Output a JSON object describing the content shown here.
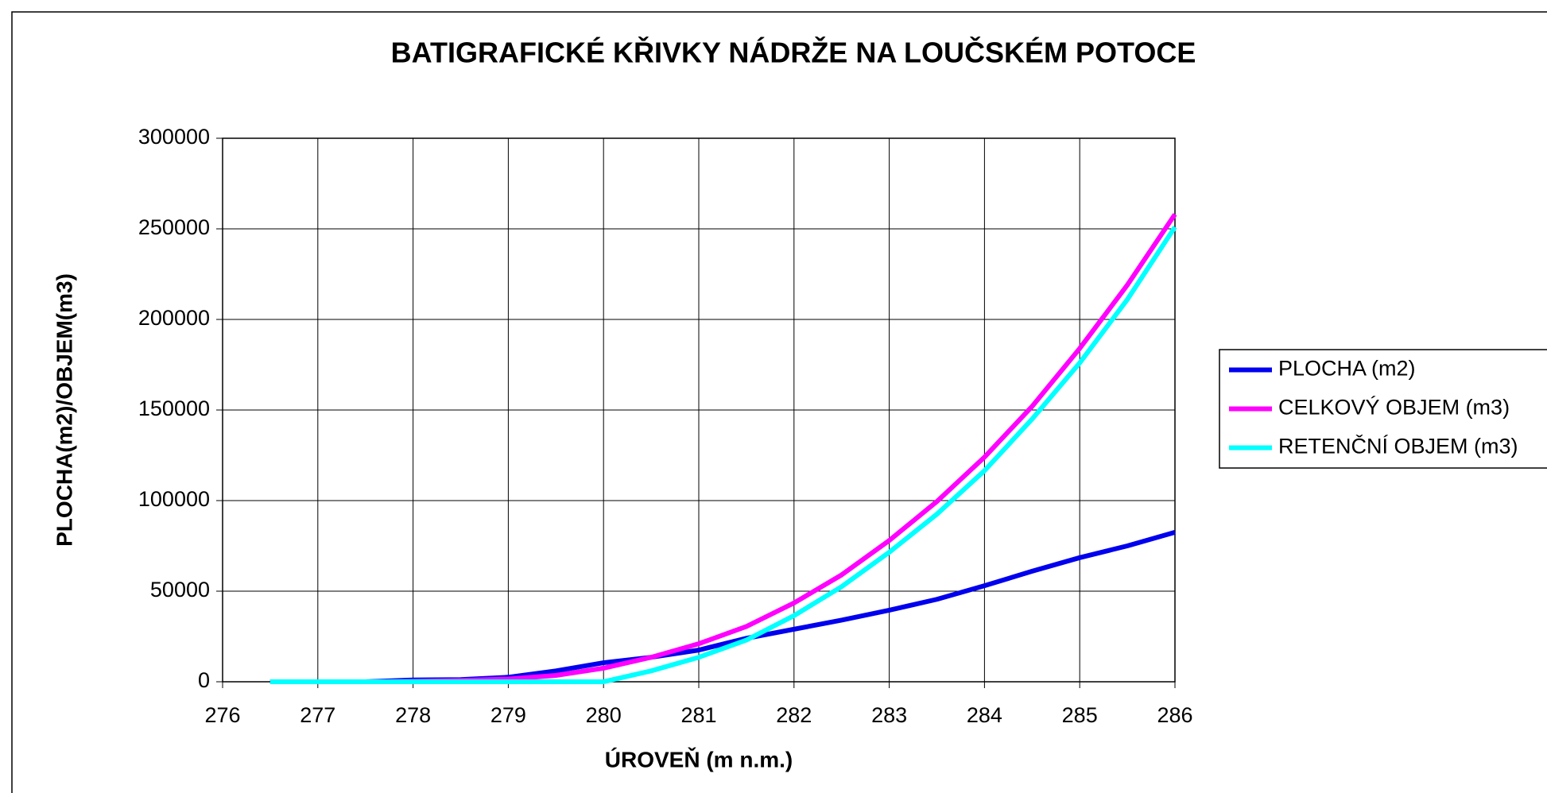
{
  "chart_data": {
    "type": "line",
    "title": "BATIGRAFICKÉ KŘIVKY NÁDRŽE NA LOUČSKÉM POTOCE",
    "x_label": "ÚROVEŇ (m n.m.)",
    "y_label": "PLOCHA(m2)/OBJEM(m3)",
    "x": [
      276.5,
      276.9,
      277,
      277.5,
      278,
      278.5,
      279,
      279.5,
      280,
      280.5,
      281,
      281.5,
      282,
      282.5,
      283,
      283.5,
      284,
      284.5,
      285,
      285.5,
      286
    ],
    "series": [
      {
        "name": "PLOCHA (m2)",
        "color": "#0000ee",
        "values": [
          0,
          0,
          0,
          0,
          1000,
          1200,
          2500,
          6000,
          10500,
          13500,
          17500,
          24000,
          29000,
          34000,
          39500,
          45500,
          53000,
          61000,
          68500,
          75000,
          82500
        ]
      },
      {
        "name": "CELKOVÝ OBJEM (m3)",
        "color": "#ff00ff",
        "values": [
          0,
          0,
          0,
          0,
          200,
          700,
          1500,
          3500,
          7500,
          13500,
          21000,
          30500,
          43500,
          59000,
          78000,
          99500,
          124000,
          152000,
          184000,
          219000,
          258000
        ]
      },
      {
        "name": "RETENČNÍ OBJEM (m3)",
        "color": "#00ffff",
        "values": [
          0,
          0,
          0,
          0,
          0,
          0,
          0,
          0,
          0,
          6000,
          13500,
          23000,
          36500,
          52500,
          71500,
          92500,
          116500,
          145000,
          176000,
          211000,
          251000
        ]
      }
    ],
    "xlim": [
      276,
      286
    ],
    "xticks": [
      276,
      277,
      278,
      279,
      280,
      281,
      282,
      283,
      284,
      285,
      286
    ],
    "ylim": [
      0,
      300000
    ],
    "yticks": [
      0,
      50000,
      100000,
      150000,
      200000,
      250000,
      300000
    ],
    "grid": true,
    "legend": "right"
  }
}
